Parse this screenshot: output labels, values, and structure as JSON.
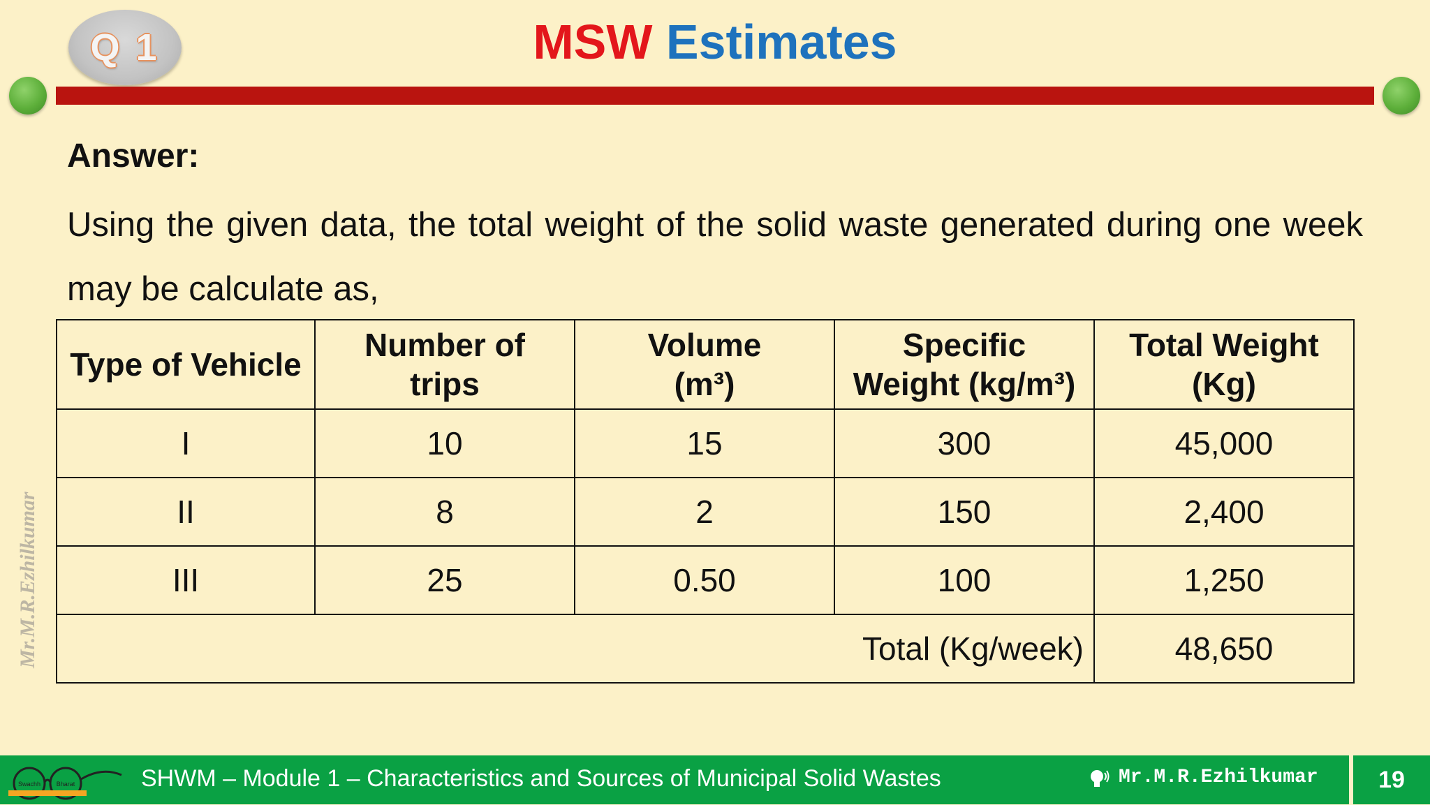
{
  "header": {
    "badge": "Q 1",
    "title_part1": "MSW",
    "title_part2": "Estimates"
  },
  "content": {
    "heading": "Answer:",
    "paragraph": "Using the given data, the total weight of the solid waste generated during one week may be calculate as,"
  },
  "table": {
    "headers": [
      {
        "line1": "Type of Vehicle",
        "line2": ""
      },
      {
        "line1": "Number of",
        "line2": "trips"
      },
      {
        "line1": "Volume",
        "line2": "(m³)"
      },
      {
        "line1": "Specific",
        "line2": "Weight (kg/m³)"
      },
      {
        "line1": "Total Weight",
        "line2": "(Kg)"
      }
    ],
    "rows": [
      [
        "I",
        "10",
        "15",
        "300",
        "45,000"
      ],
      [
        "II",
        "8",
        "2",
        "150",
        "2,400"
      ],
      [
        "III",
        "25",
        "0.50",
        "100",
        "1,250"
      ]
    ],
    "total_label": "Total (Kg/week)",
    "total_value": "48,650"
  },
  "watermark": "Mr.M.R.Ezhilkumar",
  "footer": {
    "course": "SHWM – Module 1 – Characteristics and Sources of Municipal Solid Wastes",
    "author": "Mr.M.R.Ezhilkumar",
    "page": "19",
    "logo_text_left": "Swachh",
    "logo_text_right": "Bharat"
  }
}
